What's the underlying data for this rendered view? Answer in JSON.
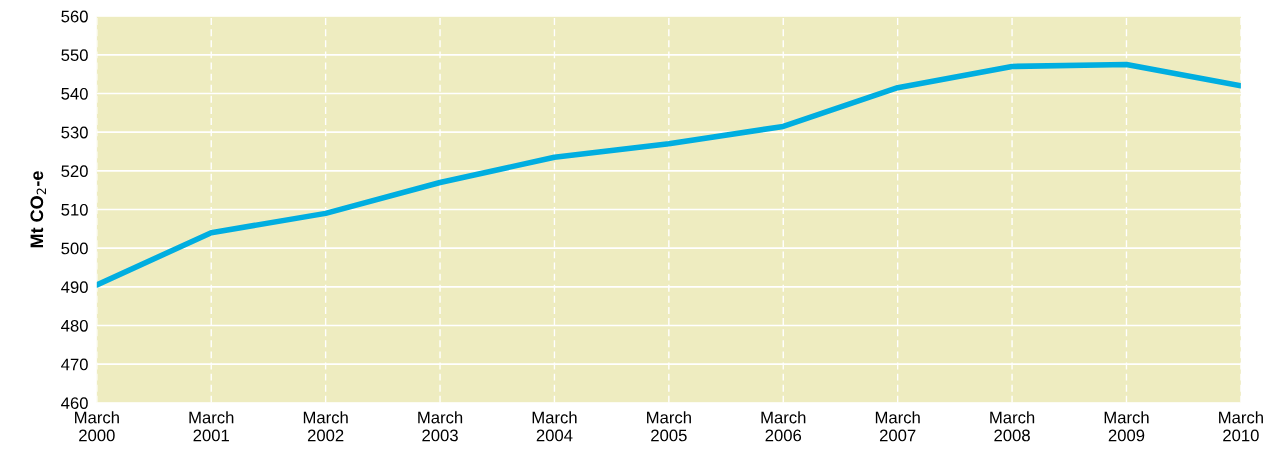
{
  "chart_data": {
    "type": "line",
    "ylabel": "Mt CO$_{2}$-e",
    "categories": [
      "March\n2000",
      "March\n2001",
      "March\n2002",
      "March\n2003",
      "March\n2004",
      "March\n2005",
      "March\n2006",
      "March\n2007",
      "March\n2008",
      "March\n2009",
      "March\n2010"
    ],
    "series": [
      {
        "color": "#00aee0",
        "values": [
          490.5,
          504,
          509,
          517,
          523.5,
          527,
          531.5,
          541.5,
          547,
          547.5,
          542
        ]
      }
    ],
    "ylim": [
      460,
      560
    ],
    "yticks": [
      460,
      470,
      480,
      490,
      500,
      510,
      520,
      530,
      540,
      550,
      560
    ],
    "grid": true,
    "marker": "none",
    "line_style": "solid"
  }
}
